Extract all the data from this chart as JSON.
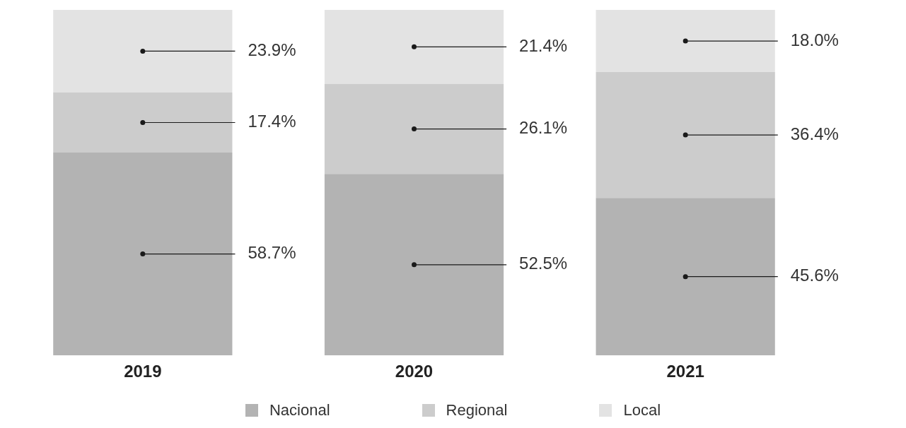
{
  "chart_data": {
    "type": "bar",
    "stacked": true,
    "categories": [
      "2019",
      "2020",
      "2021"
    ],
    "series": [
      {
        "name": "Nacional",
        "color": "#b3b3b3",
        "values": [
          58.7,
          52.5,
          45.6
        ],
        "value_labels": [
          "58.7%",
          "52.5%",
          "45.6%"
        ]
      },
      {
        "name": "Regional",
        "color": "#cccccc",
        "values": [
          17.4,
          26.1,
          36.4
        ],
        "value_labels": [
          "17.4%",
          "26.1%",
          "36.4%"
        ]
      },
      {
        "name": "Local",
        "color": "#e3e3e3",
        "values": [
          23.9,
          21.4,
          18.0
        ],
        "value_labels": [
          "23.9%",
          "21.4%",
          "18.0%"
        ]
      }
    ],
    "legend": "bottom",
    "grid": false
  }
}
